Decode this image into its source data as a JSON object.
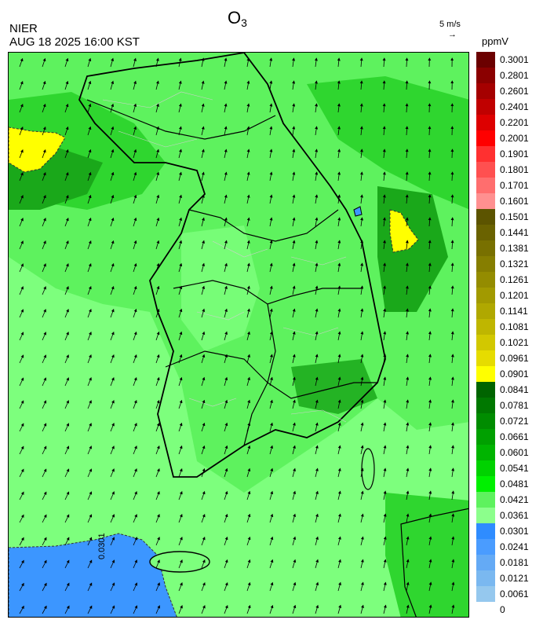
{
  "header": {
    "title_main": "O",
    "title_sub": "3",
    "agency": "NIER",
    "timestamp": "AUG 18 2025 16:00 KST",
    "wind_reference": "5 m/s",
    "wind_arrow": "→",
    "unit": "ppmV"
  },
  "map": {
    "contour_label": "0.0301",
    "colors": {
      "background_green": "#5ef25e",
      "light_green": "#7dff7d",
      "mid_green": "#2fd62f",
      "dark_green": "#1aa81a",
      "yellow": "#ffff00",
      "blue": "#3c96ff",
      "coastline": "#000000",
      "district_lines": "#cfcfcf"
    }
  },
  "legend": {
    "entries": [
      {
        "label": "0.3001",
        "color": "#6b0000"
      },
      {
        "label": "0.2801",
        "color": "#8b0000"
      },
      {
        "label": "0.2601",
        "color": "#a50000"
      },
      {
        "label": "0.2401",
        "color": "#c00000"
      },
      {
        "label": "0.2201",
        "color": "#dd0000"
      },
      {
        "label": "0.2001",
        "color": "#ff0000"
      },
      {
        "label": "0.1901",
        "color": "#ff3030"
      },
      {
        "label": "0.1801",
        "color": "#ff5050"
      },
      {
        "label": "0.1701",
        "color": "#ff6e6e"
      },
      {
        "label": "0.1601",
        "color": "#ff9090"
      },
      {
        "label": "0.1501",
        "color": "#5c5400"
      },
      {
        "label": "0.1441",
        "color": "#6a6200"
      },
      {
        "label": "0.1381",
        "color": "#787000"
      },
      {
        "label": "0.1321",
        "color": "#867e00"
      },
      {
        "label": "0.1261",
        "color": "#948c00"
      },
      {
        "label": "0.1201",
        "color": "#a29a00"
      },
      {
        "label": "0.1141",
        "color": "#b0a800"
      },
      {
        "label": "0.1081",
        "color": "#bfb600"
      },
      {
        "label": "0.1021",
        "color": "#d2c800"
      },
      {
        "label": "0.0961",
        "color": "#e6dc00"
      },
      {
        "label": "0.0901",
        "color": "#ffff00"
      },
      {
        "label": "0.0841",
        "color": "#006400"
      },
      {
        "label": "0.0781",
        "color": "#007800"
      },
      {
        "label": "0.0721",
        "color": "#008c00"
      },
      {
        "label": "0.0661",
        "color": "#00a000"
      },
      {
        "label": "0.0601",
        "color": "#00b400"
      },
      {
        "label": "0.0541",
        "color": "#00d200"
      },
      {
        "label": "0.0481",
        "color": "#00f000"
      },
      {
        "label": "0.0421",
        "color": "#5ef25e"
      },
      {
        "label": "0.0361",
        "color": "#8cff8c"
      },
      {
        "label": "0.0301",
        "color": "#2f8cff"
      },
      {
        "label": "0.0241",
        "color": "#4a9cff"
      },
      {
        "label": "0.0181",
        "color": "#64aaf5"
      },
      {
        "label": "0.0121",
        "color": "#7ab8f0"
      },
      {
        "label": "0.0061",
        "color": "#95c8ee"
      },
      {
        "label": "0",
        "color": null
      }
    ]
  }
}
